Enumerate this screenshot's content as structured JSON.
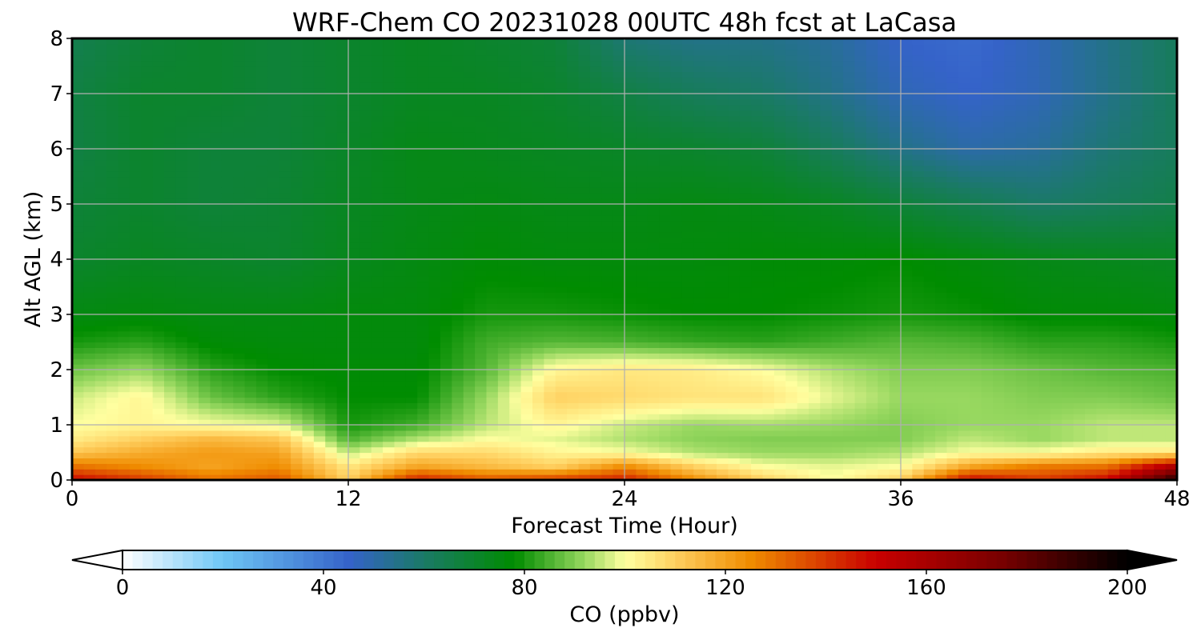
{
  "chart_data": {
    "type": "heatmap",
    "title": "WRF-Chem CO  20231028 00UTC 48h fcst at LaCasa",
    "xlabel": "Forecast Time (Hour)",
    "ylabel": "Alt AGL (km)",
    "xlim": [
      0,
      48
    ],
    "ylim": [
      0,
      8
    ],
    "xticks": [
      "0",
      "12",
      "24",
      "36",
      "48"
    ],
    "yticks": [
      "0",
      "1",
      "2",
      "3",
      "4",
      "5",
      "6",
      "7",
      "8"
    ],
    "grid": true,
    "colorbar": {
      "label": "CO  (ppbv)",
      "range": [
        0,
        200
      ],
      "extend": "both",
      "ticks": [
        "0",
        "40",
        "80",
        "120",
        "160",
        "200"
      ],
      "stops": [
        {
          "v": 0,
          "c": "#ffffff"
        },
        {
          "v": 20,
          "c": "#6ec6f5"
        },
        {
          "v": 45,
          "c": "#3563c9"
        },
        {
          "v": 60,
          "c": "#1a7a66"
        },
        {
          "v": 78,
          "c": "#008c00"
        },
        {
          "v": 92,
          "c": "#98d860"
        },
        {
          "v": 100,
          "c": "#ffffa0"
        },
        {
          "v": 110,
          "c": "#ffd060"
        },
        {
          "v": 125,
          "c": "#f08c00"
        },
        {
          "v": 150,
          "c": "#c80000"
        },
        {
          "v": 175,
          "c": "#780000"
        },
        {
          "v": 200,
          "c": "#000000"
        }
      ]
    },
    "x": [
      0,
      3,
      6,
      9,
      12,
      15,
      18,
      21,
      24,
      27,
      30,
      33,
      36,
      39,
      42,
      45,
      48
    ],
    "y": [
      0,
      0.25,
      0.5,
      0.75,
      1,
      1.5,
      2,
      2.5,
      3,
      4,
      5,
      6,
      7,
      8
    ],
    "z": [
      [
        150,
        140,
        130,
        135,
        110,
        145,
        135,
        140,
        145,
        125,
        110,
        100,
        110,
        150,
        140,
        150,
        195
      ],
      [
        130,
        125,
        120,
        125,
        105,
        120,
        115,
        110,
        125,
        110,
        100,
        98,
        100,
        120,
        128,
        130,
        160
      ],
      [
        112,
        118,
        122,
        120,
        95,
        108,
        108,
        102,
        100,
        94,
        92,
        92,
        94,
        100,
        100,
        105,
        105
      ],
      [
        104,
        110,
        115,
        112,
        85,
        94,
        100,
        98,
        94,
        91,
        90,
        90,
        90,
        95,
        92,
        95,
        95
      ],
      [
        100,
        102,
        100,
        98,
        80,
        84,
        95,
        102,
        96,
        92,
        93,
        92,
        90,
        92,
        92,
        95,
        95
      ],
      [
        96,
        102,
        88,
        82,
        78,
        78,
        92,
        110,
        108,
        106,
        106,
        98,
        92,
        92,
        90,
        90,
        88
      ],
      [
        88,
        92,
        82,
        78,
        77,
        77,
        86,
        102,
        105,
        104,
        100,
        94,
        90,
        90,
        88,
        86,
        85
      ],
      [
        80,
        82,
        77,
        76,
        76,
        76,
        84,
        86,
        85,
        83,
        82,
        84,
        86,
        85,
        82,
        82,
        80
      ],
      [
        75,
        76,
        75,
        75,
        76,
        76,
        80,
        80,
        79,
        78,
        78,
        79,
        80,
        79,
        77,
        77,
        76
      ],
      [
        70,
        72,
        71,
        70,
        73,
        75,
        77,
        76,
        76,
        76,
        77,
        77,
        78,
        76,
        74,
        73,
        72
      ],
      [
        68,
        70,
        68,
        69,
        72,
        74,
        75,
        74,
        74,
        75,
        74,
        72,
        68,
        64,
        60,
        62,
        65
      ],
      [
        66,
        70,
        68,
        68,
        71,
        74,
        73,
        72,
        71,
        70,
        68,
        62,
        55,
        50,
        52,
        58,
        62
      ],
      [
        66,
        70,
        70,
        68,
        70,
        72,
        72,
        70,
        66,
        62,
        60,
        55,
        48,
        45,
        48,
        55,
        62
      ],
      [
        64,
        68,
        70,
        68,
        70,
        72,
        70,
        68,
        58,
        55,
        55,
        52,
        45,
        43,
        48,
        55,
        62
      ]
    ]
  }
}
